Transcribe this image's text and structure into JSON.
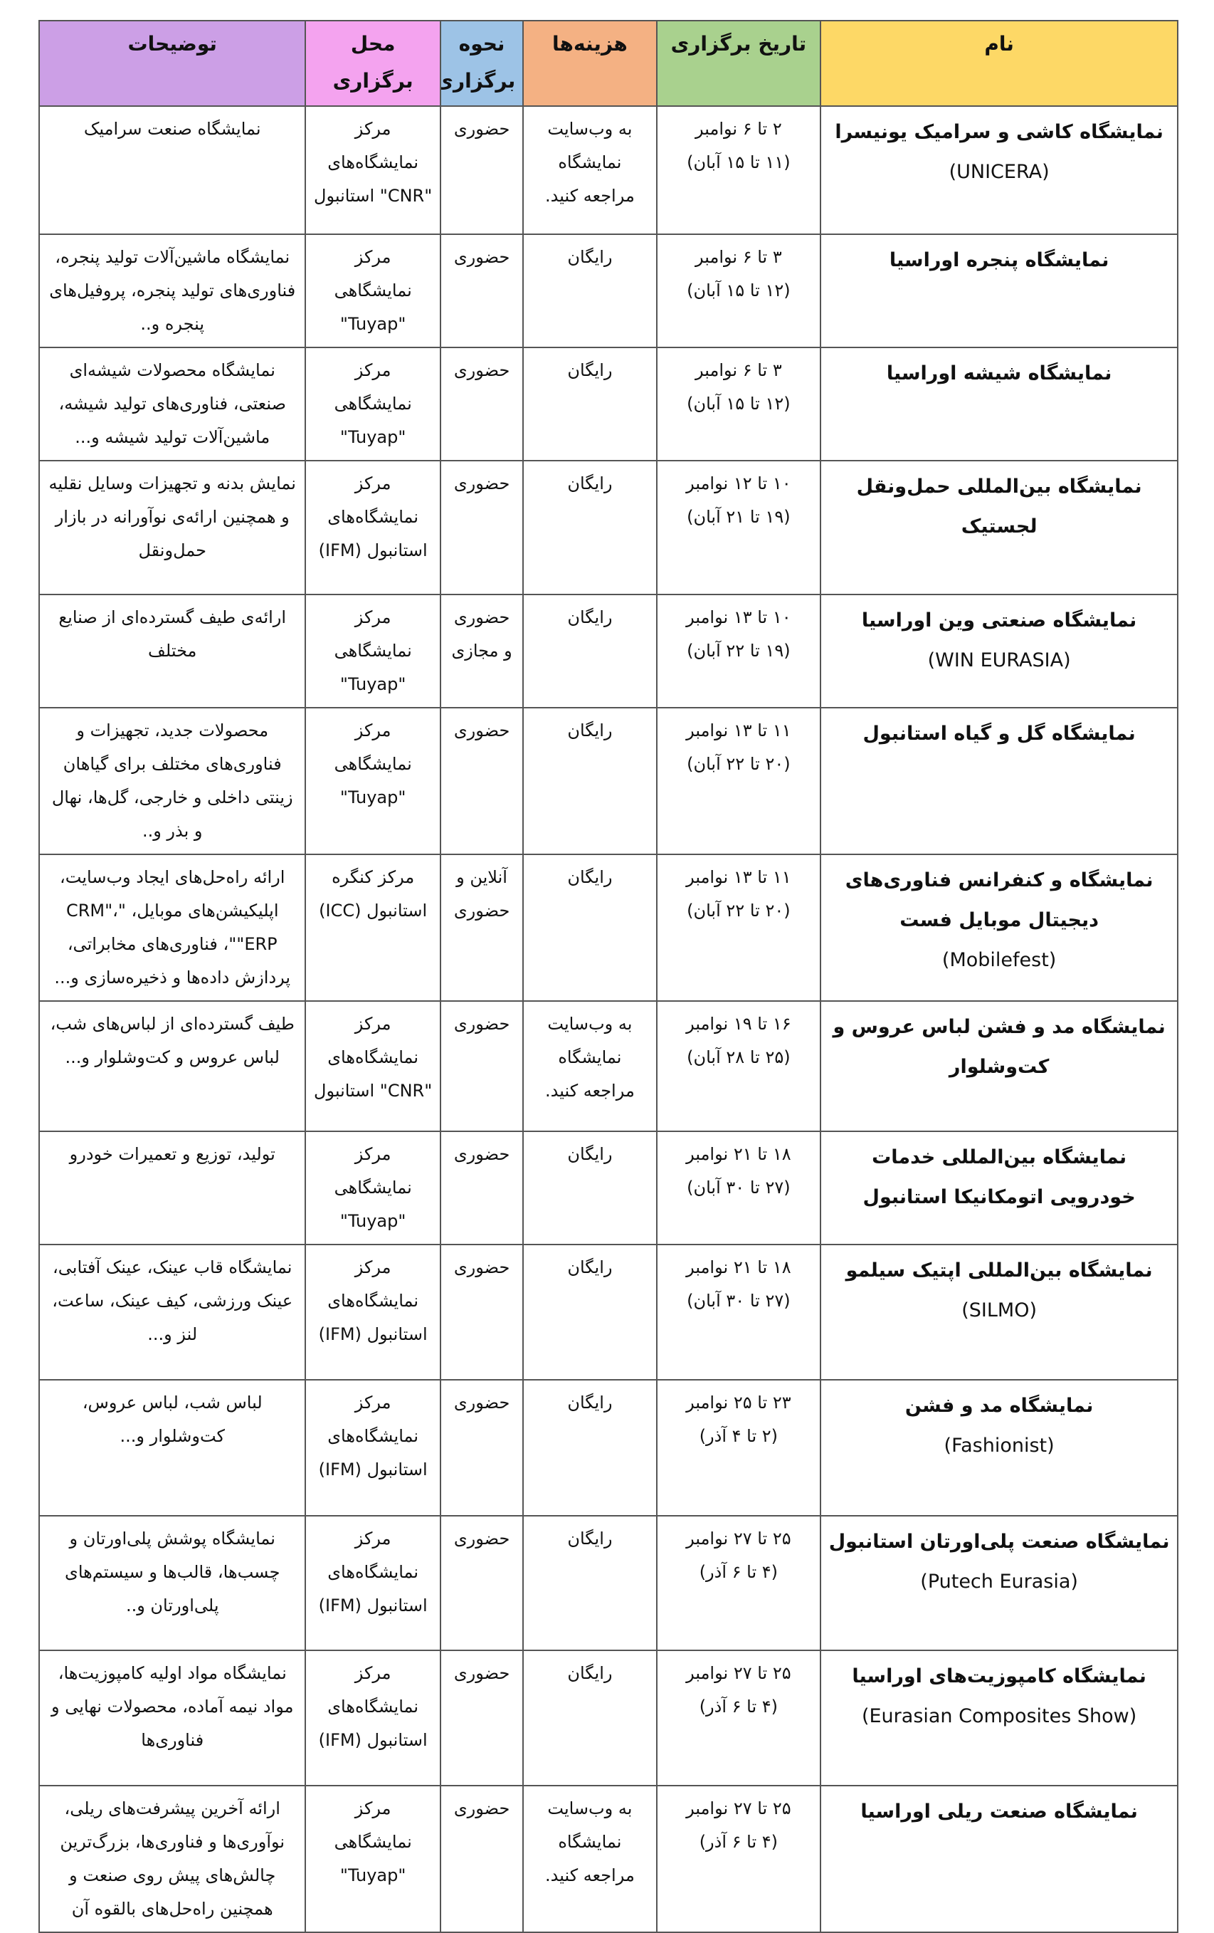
{
  "header": {
    "name": "نام",
    "date": "تاریخ برگزاری",
    "cost": "هزینه‌ها",
    "mode": "نحوه برگزاری",
    "venue": "محل برگزاری",
    "desc": "توضیحات"
  },
  "colors": {
    "name": "#FDD866",
    "date": "#A9D18E",
    "cost": "#F4B183",
    "mode": "#9DC3E6",
    "venue": "#F4A3EF",
    "desc": "#CC9FE6"
  },
  "rows": [
    {
      "name": "نمایشگاه کاشی و سرامیک یونیسرا",
      "en": "(UNICERA)",
      "date": "۲ تا ۶ نوامبر",
      "date2": "(۱۱ تا ۱۵ آبان)",
      "cost": "به وب‌سایت نمایشگاه مراجعه کنید.",
      "mode": "حضوری",
      "venue": "مرکز نمایشگاه‌های \"CNR\" استانبول",
      "desc": "نمایشگاه صنعت سرامیک"
    },
    {
      "name": "نمایشگاه پنجره اوراسیا",
      "en": "",
      "date": "۳ تا ۶ نوامبر",
      "date2": "(۱۲ تا ۱۵ آبان)",
      "cost": "رایگان",
      "mode": "حضوری",
      "venue": "مرکز نمایشگاهی \"Tuyap\"",
      "desc": "نمایشگاه ماشین‌آلات تولید پنجره، فناوری‌های تولید پنجره، پروفیل‌های پنجره و.."
    },
    {
      "name": "نمایشگاه شیشه اوراسیا",
      "en": "",
      "date": "۳ تا ۶ نوامبر",
      "date2": "(۱۲ تا ۱۵ آبان)",
      "cost": "رایگان",
      "mode": "حضوری",
      "venue": "مرکز نمایشگاهی \"Tuyap\"",
      "desc": "نمایشگاه محصولات شیشه‌ای صنعتی، فناوری‌های تولید شیشه، ماشین‌آلات تولید شیشه و..."
    },
    {
      "name": "نمایشگاه بین‌المللی حمل‌ونقل لجستیک",
      "en": "",
      "date": "۱۰ تا ۱۲ نوامبر",
      "date2": "(۱۹ تا ۲۱ آبان)",
      "cost": "رایگان",
      "mode": "حضوری",
      "venue": "مرکز نمایشگاه‌های استانبول (IFM)",
      "desc": "نمایش بدنه و تجهیزات وسایل نقلیه و همچنین ارائه‌ی نوآورانه در بازار حمل‌ونقل"
    },
    {
      "name": "نمایشگاه صنعتی وین اوراسیا",
      "en": "(WIN EURASIA)",
      "date": "۱۰ تا ۱۳ نوامبر",
      "date2": "(۱۹ تا ۲۲ آبان)",
      "cost": "رایگان",
      "mode": "حضوری و مجازی",
      "venue": "مرکز نمایشگاهی \"Tuyap\"",
      "desc": "ارائه‌ی طیف گسترده‌ای از صنایع مختلف"
    },
    {
      "name": "نمایشگاه گل و گیاه استانبول",
      "en": "",
      "date": "۱۱ تا ۱۳ نوامبر",
      "date2": "(۲۰ تا ۲۲ آبان)",
      "cost": "رایگان",
      "mode": "حضوری",
      "venue": "مرکز نمایشگاهی \"Tuyap\"",
      "desc": "محصولات جدید، تجهیزات و فناوری‌های مختلف برای گیاهان زینتی داخلی و خارجی، گل‌ها، نهال و بذر و.."
    },
    {
      "name": "نمایشگاه و کنفرانس فناوری‌های دیجیتال موبایل فست",
      "en": "(Mobilefest)",
      "date": "۱۱ تا ۱۳ نوامبر",
      "date2": "(۲۰ تا ۲۲ آبان)",
      "cost": "رایگان",
      "mode": "آنلاین و حضوری",
      "venue": "مرکز کنگره استانبول (ICC)",
      "desc": "ارائه راه‌حل‌های ایجاد وب‌سایت، اپلیکیشن‌های موبایل، \"CRM\"، \"ERP\"، فناوری‌های مخابراتی، پردازش داده‌ها و ذخیره‌سازی و..."
    },
    {
      "name": "نمایشگاه مد و فشن لباس عروس و کت‌وشلوار",
      "en": "",
      "date": "۱۶ تا ۱۹ نوامبر",
      "date2": "(۲۵ تا ۲۸ آبان)",
      "cost": "به وب‌سایت نمایشگاه مراجعه کنید.",
      "mode": "حضوری",
      "venue": "مرکز نمایشگاه‌های \"CNR\" استانبول",
      "desc": "طیف گسترده‌ای از لباس‌های شب، لباس عروس و کت‌وشلوار و..."
    },
    {
      "name": "نمایشگاه بین‌المللی خدمات خودرویی اتومکانیکا استانبول",
      "en": "",
      "date": "۱۸ تا ۲۱ نوامبر",
      "date2": "(۲۷ تا ۳۰ آبان)",
      "cost": "رایگان",
      "mode": "حضوری",
      "venue": "مرکز نمایشگاهی \"Tuyap\"",
      "desc": "تولید، توزیع و تعمیرات خودرو"
    },
    {
      "name": "نمایشگاه بین‌المللی اپتیک سیلمو",
      "en": "(SILMO)",
      "date": "۱۸ تا ۲۱ نوامبر",
      "date2": "(۲۷ تا ۳۰ آبان)",
      "cost": "رایگان",
      "mode": "حضوری",
      "venue": "مرکز نمایشگاه‌های استانبول (IFM)",
      "desc": "نمایشگاه قاب عینک، عینک آفتابی، عینک ورزشی، کیف عینک، ساعت، لنز و..."
    },
    {
      "name": "نمایشگاه مد و فشن",
      "en": "(Fashionist)",
      "date": "۲۳ تا ۲۵ نوامبر",
      "date2": "(۲ تا ۴ آذر)",
      "cost": "رایگان",
      "mode": "حضوری",
      "venue": "مرکز نمایشگاه‌های استانبول (IFM)",
      "desc": "لباس شب، لباس عروس، کت‌وشلوار و..."
    },
    {
      "name": "نمایشگاه صنعت پلی‌اورتان استانبول",
      "en": "(Putech Eurasia)",
      "date": "۲۵ تا ۲۷ نوامبر",
      "date2": "(۴ تا ۶ آذر)",
      "cost": "رایگان",
      "mode": "حضوری",
      "venue": "مرکز نمایشگاه‌های استانبول (IFM)",
      "desc": "نمایشگاه پوشش پلی‌اورتان و چسب‌ها، قالب‌ها و سیستم‌های پلی‌اورتان و.."
    },
    {
      "name": "نمایشگاه کامپوزیت‌های اوراسیا",
      "en": "(Eurasian Composites Show)",
      "date": "۲۵ تا ۲۷ نوامبر",
      "date2": "(۴ تا ۶ آذر)",
      "cost": "رایگان",
      "mode": "حضوری",
      "venue": "مرکز نمایشگاه‌های استانبول (IFM)",
      "desc": "نمایشگاه مواد اولیه کامپوزیت‌ها، مواد نیمه آماده، محصولات نهایی و فناوری‌ها"
    },
    {
      "name": "نمایشگاه صنعت ریلی اوراسیا",
      "en": "",
      "date": "۲۵ تا ۲۷ نوامبر",
      "date2": "(۴ تا ۶ آذر)",
      "cost": "به وب‌سایت نمایشگاه مراجعه کنید.",
      "mode": "حضوری",
      "venue": "مرکز نمایشگاهی \"Tuyap\"",
      "desc": "ارائه آخرین پیشرفت‌های ریلی، نوآوری‌ها و فناوری‌ها، بزرگ‌ترین چالش‌های پیش روی صنعت و همچنین راه‌حل‌های بالقوه آن"
    }
  ]
}
